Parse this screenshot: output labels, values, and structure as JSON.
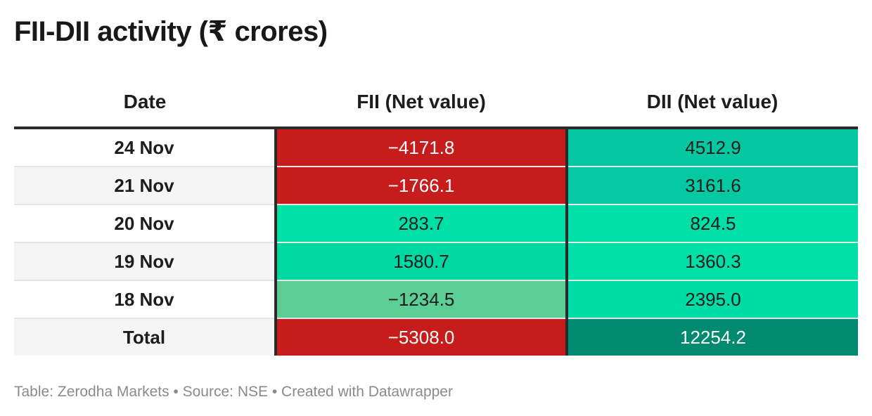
{
  "title": "FII-DII activity (₹ crores)",
  "columns": {
    "date": "Date",
    "fii": "FII (Net value)",
    "dii": "DII (Net value)"
  },
  "rows": [
    {
      "date": "24 Nov",
      "fii": "−4171.8",
      "dii": "4512.9"
    },
    {
      "date": "21 Nov",
      "fii": "−1766.1",
      "dii": "3161.6"
    },
    {
      "date": "20 Nov",
      "fii": "283.7",
      "dii": "824.5"
    },
    {
      "date": "19 Nov",
      "fii": "1580.7",
      "dii": "1360.3"
    },
    {
      "date": "18 Nov",
      "fii": "−1234.5",
      "dii": "2395.0"
    },
    {
      "date": "Total",
      "fii": "−5308.0",
      "dii": "12254.2"
    }
  ],
  "cell_colors": {
    "fii": [
      "#c71c1c",
      "#c71c1c",
      "#00dfa6",
      "#00d8a2",
      "#5bcd95",
      "#c71c1c"
    ],
    "dii": [
      "#05c7a1",
      "#05c9a2",
      "#00dfa6",
      "#00dfa6",
      "#00dca5",
      "#008a6f"
    ]
  },
  "cell_text_colors": {
    "fii": [
      "#ffffff",
      "#ffffff",
      "#1d1d1d",
      "#1d1d1d",
      "#1d1d1d",
      "#ffffff"
    ],
    "dii": [
      "#1d1d1d",
      "#1d1d1d",
      "#1d1d1d",
      "#1d1d1d",
      "#1d1d1d",
      "#ffffff"
    ]
  },
  "footer": "Table: Zerodha Markets • Source: NSE • Created with Datawrapper",
  "chart_data": {
    "type": "table",
    "title": "FII-DII activity (₹ crores)",
    "columns": [
      "Date",
      "FII (Net value)",
      "DII (Net value)"
    ],
    "categories": [
      "24 Nov",
      "21 Nov",
      "20 Nov",
      "19 Nov",
      "18 Nov",
      "Total"
    ],
    "series": [
      {
        "name": "FII (Net value)",
        "values": [
          -4171.8,
          -1766.1,
          283.7,
          1580.7,
          -1234.5,
          -5308.0
        ]
      },
      {
        "name": "DII (Net value)",
        "values": [
          4512.9,
          3161.6,
          824.5,
          1360.3,
          2395.0,
          12254.2
        ]
      }
    ]
  }
}
